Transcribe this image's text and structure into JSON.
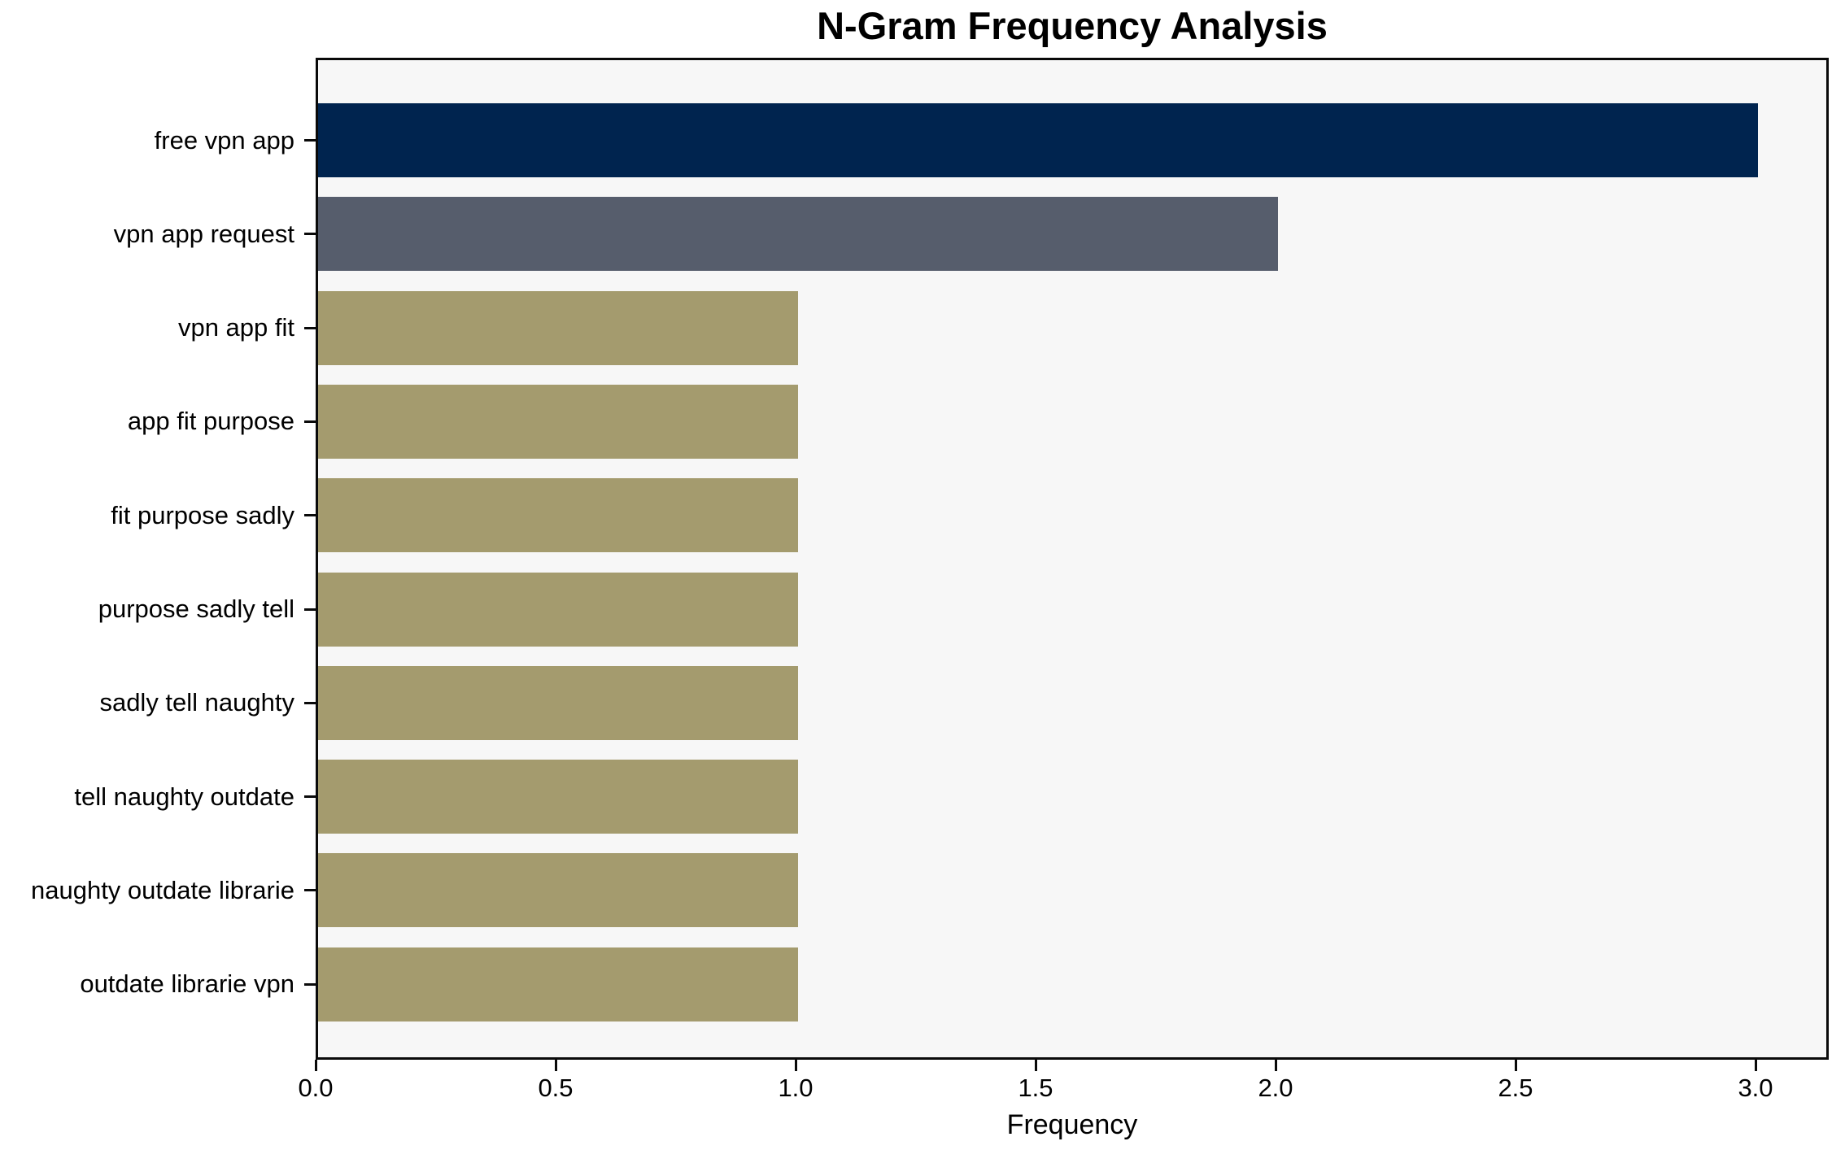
{
  "figure": {
    "title": "N-Gram Frequency Analysis",
    "xlabel": "Frequency"
  },
  "chart_data": {
    "type": "bar",
    "orientation": "horizontal",
    "title": "N-Gram Frequency Analysis",
    "xlabel": "Frequency",
    "ylabel": "",
    "categories": [
      "free vpn app",
      "vpn app request",
      "vpn app fit",
      "app fit purpose",
      "fit purpose sadly",
      "purpose sadly tell",
      "sadly tell naughty",
      "tell naughty outdate",
      "naughty outdate librarie",
      "outdate librarie vpn"
    ],
    "values": [
      3,
      2,
      1,
      1,
      1,
      1,
      1,
      1,
      1,
      1
    ],
    "xlim": [
      0,
      3.15
    ],
    "xticks": [
      0.0,
      0.5,
      1.0,
      1.5,
      2.0,
      2.5,
      3.0
    ],
    "xtick_labels": [
      "0.0",
      "0.5",
      "1.0",
      "1.5",
      "2.0",
      "2.5",
      "3.0"
    ],
    "grid": false,
    "legend": null,
    "bar_colors": [
      "#00244F",
      "#565D6C",
      "#A49B6E",
      "#A49B6E",
      "#A49B6E",
      "#A49B6E",
      "#A49B6E",
      "#A49B6E",
      "#A49B6E",
      "#A49B6E"
    ],
    "plot_bg": "#F7F7F7",
    "page_bg": "#FFFFFF",
    "spine_color": "#0a0a0a"
  }
}
